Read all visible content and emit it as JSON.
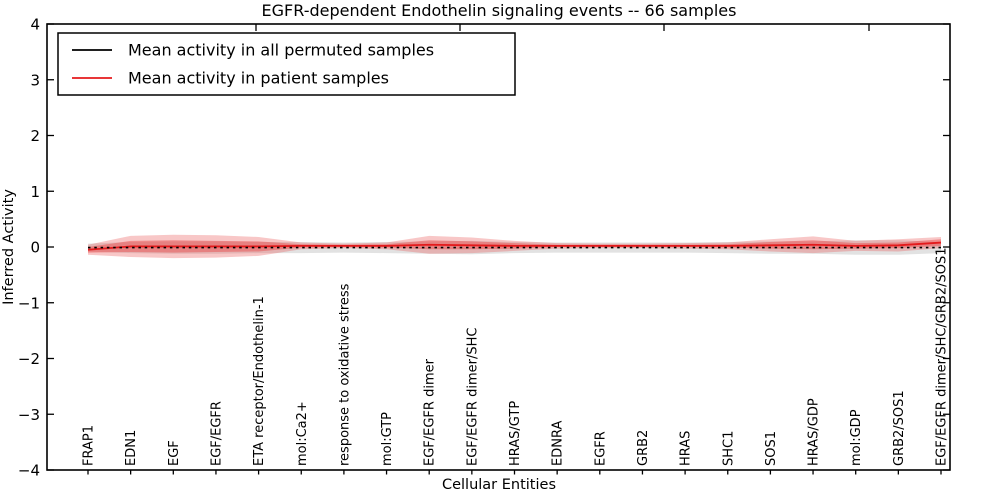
{
  "figure": {
    "background": "#ffffff"
  },
  "legend": {
    "items": [
      {
        "label": "Mean activity in all permuted samples",
        "color": "#000000"
      },
      {
        "label": "Mean activity in patient samples",
        "color": "#e41a1c"
      }
    ]
  },
  "chart_data": {
    "type": "area",
    "title": "EGFR-dependent Endothelin signaling events -- 66 samples",
    "xlabel": "Cellular Entities",
    "ylabel": "Inferred Activity",
    "ylim": [
      -4,
      4
    ],
    "yticks": [
      4,
      3,
      2,
      1,
      0,
      -1,
      -2,
      -3,
      -4
    ],
    "ytick_labels": [
      "4",
      "3",
      "2",
      "1",
      "0",
      "−1",
      "−2",
      "−3",
      "−4"
    ],
    "grid": false,
    "legend_position": "upper left",
    "categories": [
      "FRAP1",
      "EDN1",
      "EGF",
      "EGF/EGFR",
      "ETA receptor/Endothelin-1",
      "mol:Ca2+",
      "response to oxidative stress",
      "mol:GTP",
      "EGF/EGFR dimer",
      "EGF/EGFR dimer/SHC",
      "HRAS/GTP",
      "EDNRA",
      "EGFR",
      "GRB2",
      "HRAS",
      "SHC1",
      "SOS1",
      "HRAS/GDP",
      "mol:GDP",
      "GRB2/SOS1",
      "EGF/EGFR dimer/SHC/GRB2/SOS1"
    ],
    "series": [
      {
        "name": "Mean activity in all permuted samples",
        "color": "#000000",
        "line_style": "dotted",
        "band_color": "#bbbbbb",
        "mean": [
          -0.01,
          -0.01,
          -0.01,
          -0.01,
          -0.01,
          -0.01,
          -0.01,
          -0.01,
          -0.01,
          -0.01,
          -0.01,
          -0.01,
          -0.01,
          -0.01,
          -0.01,
          -0.01,
          -0.01,
          -0.01,
          -0.01,
          -0.01,
          -0.01
        ],
        "band_halfwidth": [
          0.07,
          0.1,
          0.11,
          0.11,
          0.1,
          0.1,
          0.09,
          0.1,
          0.11,
          0.12,
          0.1,
          0.09,
          0.09,
          0.09,
          0.09,
          0.1,
          0.11,
          0.11,
          0.13,
          0.13,
          0.1
        ]
      },
      {
        "name": "Mean activity in patient samples",
        "color": "#e41a1c",
        "line_style": "solid",
        "band_color": "#e84545",
        "mean": [
          -0.05,
          0.01,
          0.01,
          0.01,
          0.01,
          0.02,
          0.02,
          0.02,
          0.04,
          0.03,
          0.02,
          0.02,
          0.02,
          0.02,
          0.02,
          0.02,
          0.03,
          0.04,
          0.02,
          0.03,
          0.08
        ],
        "band_outer_halfwidth": [
          0.09,
          0.19,
          0.21,
          0.2,
          0.17,
          0.06,
          0.04,
          0.06,
          0.16,
          0.14,
          0.09,
          0.05,
          0.04,
          0.04,
          0.05,
          0.06,
          0.11,
          0.15,
          0.09,
          0.11,
          0.1
        ],
        "band_inner_halfwidth": [
          0.05,
          0.1,
          0.11,
          0.1,
          0.09,
          0.03,
          0.02,
          0.03,
          0.08,
          0.07,
          0.05,
          0.02,
          0.02,
          0.02,
          0.02,
          0.03,
          0.06,
          0.08,
          0.05,
          0.05,
          0.06
        ]
      }
    ]
  }
}
